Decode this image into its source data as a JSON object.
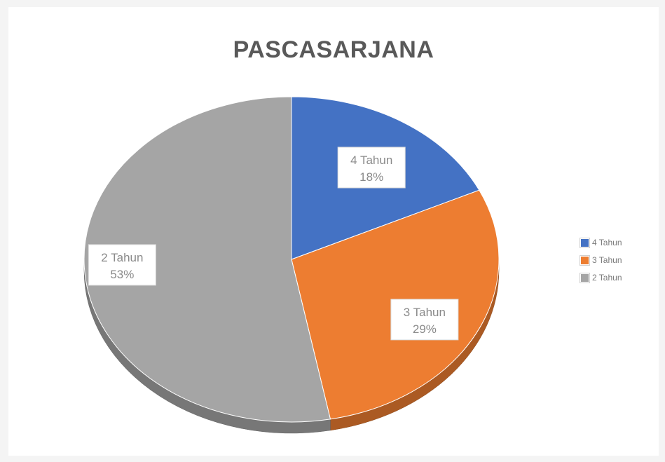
{
  "chart_data": {
    "type": "pie",
    "title": "PASCASARJANA",
    "slices": [
      {
        "label": "4 Tahun",
        "value": 18,
        "display": "18%",
        "color": "#4472c4"
      },
      {
        "label": "3 Tahun",
        "value": 29,
        "display": "29%",
        "color": "#ed7d31"
      },
      {
        "label": "2 Tahun",
        "value": 53,
        "display": "53%",
        "color": "#a5a5a5"
      }
    ],
    "legend_position": "right",
    "style": "3d"
  }
}
